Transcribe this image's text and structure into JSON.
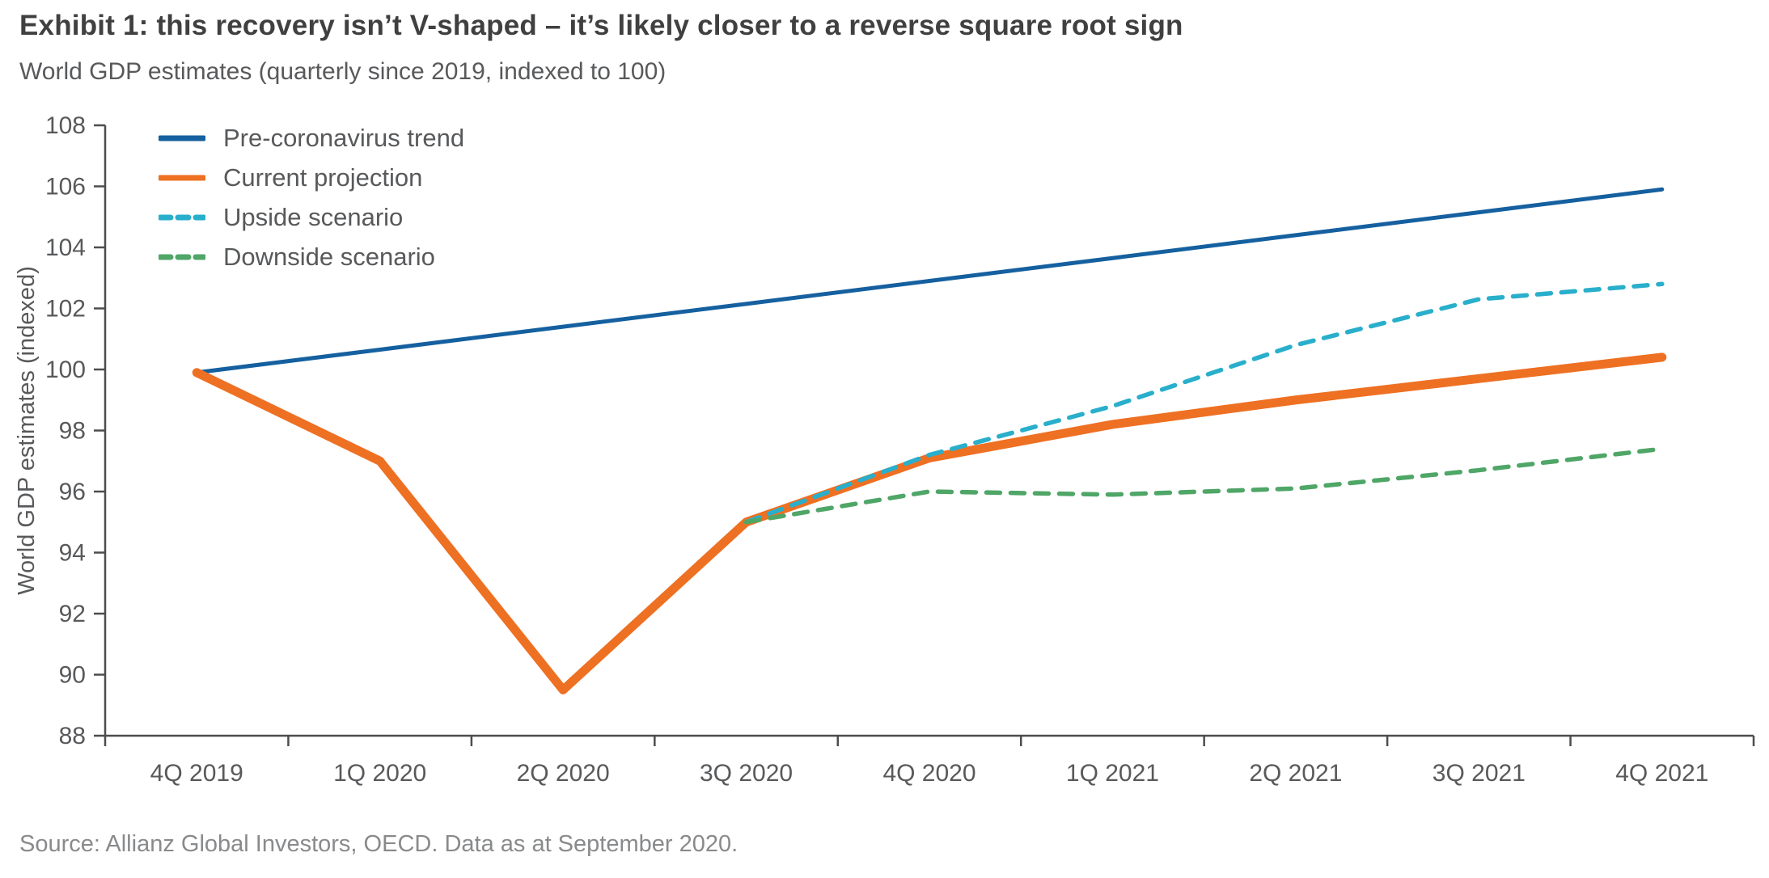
{
  "page": {
    "title": "Exhibit 1: this recovery isn’t V-shaped – it’s likely closer to a reverse square root sign",
    "subtitle": "World GDP estimates (quarterly since 2019, indexed to 100)",
    "source": "Source: Allianz Global Investors, OECD. Data as at September 2020."
  },
  "colors": {
    "title_text": "#404040",
    "body_text": "#58595b",
    "source_text": "#898a8c",
    "axis_line": "#4d4d4d",
    "background": "#ffffff"
  },
  "chart_data": {
    "type": "line",
    "title": "Exhibit 1: this recovery isn’t V-shaped – it’s likely closer to a reverse square root sign",
    "subtitle": "World GDP estimates (quarterly since 2019, indexed to 100)",
    "xlabel": "",
    "ylabel": "World GDP estimates (indexed)",
    "ylim": [
      88,
      108
    ],
    "ytick_step": 2,
    "grid": false,
    "legend_position": "top-left-inside",
    "categories": [
      "4Q 2019",
      "1Q 2020",
      "2Q 2020",
      "3Q 2020",
      "4Q 2020",
      "1Q 2021",
      "2Q 2021",
      "3Q 2021",
      "4Q 2021"
    ],
    "series": [
      {
        "name": "Pre-coronavirus trend",
        "color": "#15609f",
        "style": "solid",
        "values": [
          99.9,
          100.65,
          101.4,
          102.15,
          102.9,
          103.65,
          104.4,
          105.15,
          105.9
        ]
      },
      {
        "name": "Current projection",
        "color": "#ee7023",
        "style": "solid",
        "values": [
          99.9,
          97.0,
          89.5,
          95.0,
          97.1,
          98.2,
          99.0,
          99.7,
          100.4
        ]
      },
      {
        "name": "Upside scenario",
        "color": "#29afcb",
        "style": "dashed",
        "values": [
          null,
          null,
          null,
          95.0,
          97.2,
          98.8,
          100.8,
          102.3,
          102.8
        ]
      },
      {
        "name": "Downside scenario",
        "color": "#4fa667",
        "style": "dashed",
        "values": [
          null,
          null,
          null,
          95.0,
          96.0,
          95.9,
          96.1,
          96.7,
          97.4
        ]
      }
    ]
  }
}
